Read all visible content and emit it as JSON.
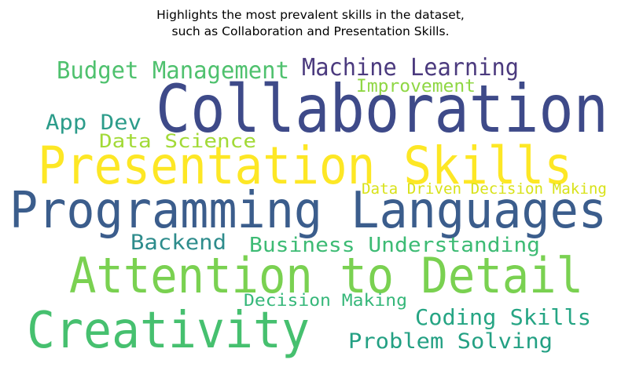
{
  "chart_data": {
    "type": "wordcloud",
    "title_lines": [
      "Highlights the most prevalent skills in the dataset,",
      "such as Collaboration and Presentation Skills."
    ],
    "words": [
      {
        "text": "Collaboration",
        "color": "#3e4a89"
      },
      {
        "text": "Presentation Skills",
        "color": "#fde725"
      },
      {
        "text": "Programming Languages",
        "color": "#3b5d8c"
      },
      {
        "text": "Attention to Detail",
        "color": "#7ad151"
      },
      {
        "text": "Creativity",
        "color": "#46c06f"
      },
      {
        "text": "Machine Learning",
        "color": "#4b3a7e"
      },
      {
        "text": "Budget Management",
        "color": "#4fc16e"
      },
      {
        "text": "Improvement",
        "color": "#8fd744"
      },
      {
        "text": "App Dev",
        "color": "#2c9c8a"
      },
      {
        "text": "Data Science",
        "color": "#a2da37"
      },
      {
        "text": "Data Driven Decision Making",
        "color": "#d8e219"
      },
      {
        "text": "Backend",
        "color": "#2e8c8c"
      },
      {
        "text": "Business Understanding",
        "color": "#3dbb74"
      },
      {
        "text": "Decision Making",
        "color": "#35b779"
      },
      {
        "text": "Coding Skills",
        "color": "#26a584"
      },
      {
        "text": "Problem Solving",
        "color": "#23a083"
      }
    ]
  }
}
